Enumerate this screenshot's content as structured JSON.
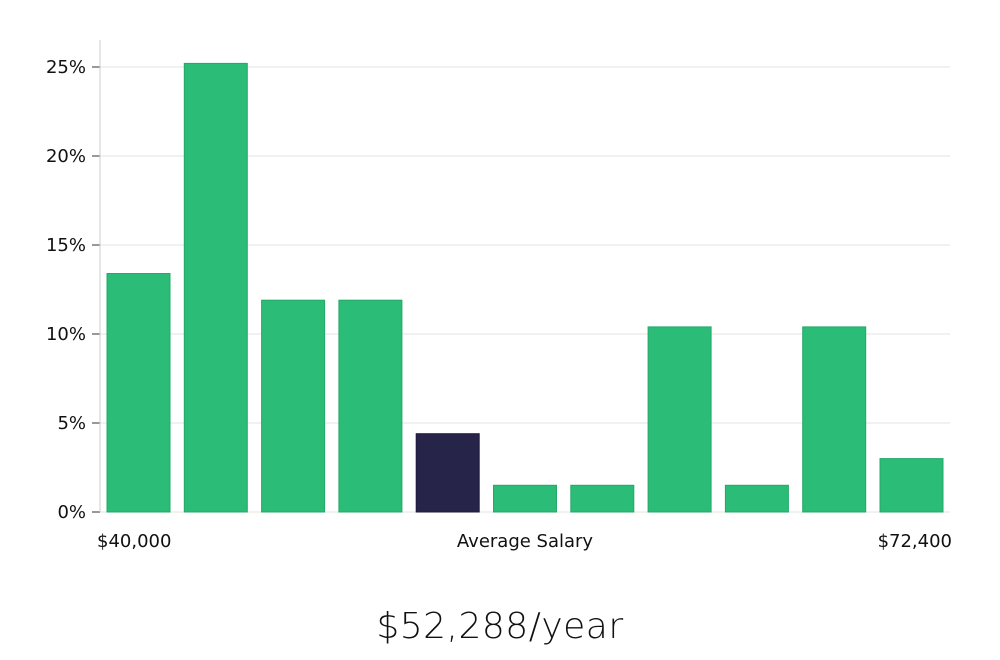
{
  "chart_data": {
    "type": "bar",
    "values": [
      13.4,
      25.2,
      11.9,
      11.9,
      4.4,
      1.5,
      1.5,
      10.4,
      1.5,
      10.4,
      3.0
    ],
    "highlight_index": 4,
    "ylim": [
      0,
      26
    ],
    "y_ticks": [
      0,
      5,
      10,
      15,
      20,
      25
    ],
    "y_tick_labels": [
      "0%",
      "5%",
      "10%",
      "15%",
      "20%",
      "25%"
    ],
    "x_min_label": "$40,000",
    "x_center_label": "Average Salary",
    "x_max_label": "$72,400",
    "grid": true,
    "colors": {
      "bar": "#2bbd77",
      "highlight": "#27244a",
      "grid": "#e3e3e3",
      "axis": "#cccccc"
    }
  },
  "salary_value": "$52,288/year"
}
